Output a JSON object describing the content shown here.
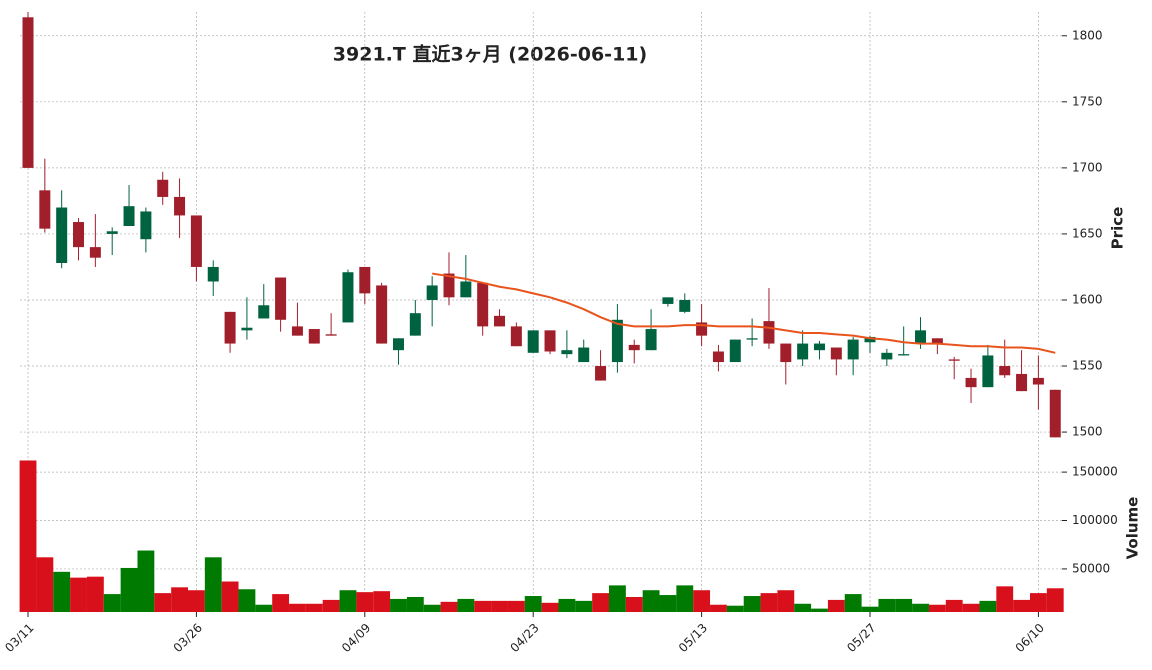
{
  "chart_data": {
    "type": "candlestick",
    "title": "3921.T  直近3ヶ月  (2026-06-11)",
    "y_label": "Price",
    "volume_label": "Volume",
    "categories": [
      "03/11",
      null,
      null,
      null,
      null,
      null,
      null,
      null,
      null,
      null,
      "03/26",
      null,
      null,
      null,
      null,
      null,
      null,
      null,
      null,
      null,
      "04/09",
      null,
      null,
      null,
      null,
      null,
      null,
      null,
      null,
      null,
      "04/23",
      null,
      null,
      null,
      null,
      null,
      null,
      null,
      null,
      null,
      "05/13",
      null,
      null,
      null,
      null,
      null,
      null,
      null,
      null,
      null,
      "05/27",
      null,
      null,
      null,
      null,
      null,
      null,
      null,
      null,
      null,
      "06/10",
      null
    ],
    "open": [
      1814,
      1683,
      1628,
      1659,
      1640,
      1650,
      1656,
      1646,
      1691,
      1678,
      1664,
      1614,
      1591,
      1577,
      1586,
      1617,
      1580,
      1578,
      1574,
      1583,
      1625,
      1611,
      1562,
      1573,
      1600,
      1620,
      1602,
      1613,
      1588,
      1580,
      1560,
      1577,
      1559,
      1553,
      1550,
      1553,
      1566,
      1562,
      1597,
      1591,
      1583,
      1561,
      1553,
      1570,
      1584,
      1567,
      1555,
      1562,
      1564,
      1555,
      1568,
      1555,
      1558,
      1567,
      1571,
      1555,
      1541,
      1534,
      1550,
      1544,
      1541,
      1532
    ],
    "high": [
      1818,
      1707,
      1683,
      1662,
      1665,
      1655,
      1687,
      1670,
      1697,
      1692,
      1664,
      1630,
      1591,
      1602,
      1612,
      1617,
      1598,
      1578,
      1590,
      1623,
      1625,
      1613,
      1571,
      1600,
      1618,
      1636,
      1634,
      1613,
      1593,
      1583,
      1577,
      1577,
      1577,
      1570,
      1562,
      1597,
      1570,
      1593,
      1602,
      1605,
      1597,
      1566,
      1570,
      1586,
      1609,
      1567,
      1577,
      1569,
      1564,
      1572,
      1573,
      1563,
      1580,
      1587,
      1571,
      1557,
      1548,
      1566,
      1570,
      1562,
      1558,
      1532
    ],
    "low": [
      1700,
      1651,
      1624,
      1630,
      1625,
      1634,
      1656,
      1636,
      1672,
      1647,
      1614,
      1603,
      1560,
      1570,
      1586,
      1576,
      1573,
      1567,
      1573,
      1583,
      1597,
      1567,
      1551,
      1573,
      1580,
      1596,
      1602,
      1573,
      1580,
      1565,
      1560,
      1559,
      1556,
      1553,
      1539,
      1545,
      1552,
      1562,
      1595,
      1590,
      1565,
      1546,
      1553,
      1565,
      1563,
      1536,
      1550,
      1555,
      1543,
      1543,
      1560,
      1550,
      1558,
      1563,
      1559,
      1540,
      1522,
      1534,
      1541,
      1531,
      1517,
      1496
    ],
    "close": [
      1700,
      1654,
      1670,
      1640,
      1632,
      1652,
      1671,
      1667,
      1678,
      1664,
      1625,
      1625,
      1567,
      1579,
      1596,
      1585,
      1573,
      1567,
      1573,
      1621,
      1605,
      1567,
      1571,
      1590,
      1611,
      1602,
      1614,
      1580,
      1580,
      1565,
      1577,
      1561,
      1562,
      1564,
      1539,
      1585,
      1562,
      1578,
      1602,
      1600,
      1573,
      1553,
      1570,
      1571,
      1567,
      1553,
      1567,
      1567,
      1555,
      1570,
      1572,
      1560,
      1559,
      1577,
      1567,
      1554,
      1534,
      1558,
      1543,
      1531,
      1536,
      1496
    ],
    "ma": [
      null,
      null,
      null,
      null,
      null,
      null,
      null,
      null,
      null,
      null,
      null,
      null,
      null,
      null,
      null,
      null,
      null,
      null,
      null,
      null,
      null,
      null,
      null,
      null,
      1620,
      1618,
      1616,
      1613,
      1610,
      1608,
      1605,
      1602,
      1598,
      1593,
      1587,
      1582,
      1580,
      1580,
      1580,
      1581,
      1581,
      1580,
      1580,
      1580,
      1579,
      1577,
      1575,
      1575,
      1574,
      1573,
      1571,
      1570,
      1568,
      1567,
      1567,
      1566,
      1565,
      1565,
      1564,
      1564,
      1563,
      1560
    ],
    "volume": [
      162000,
      62000,
      47000,
      41000,
      42000,
      24000,
      51000,
      69000,
      25000,
      31000,
      28000,
      62000,
      37000,
      29000,
      13000,
      24000,
      14000,
      14000,
      18000,
      28000,
      26000,
      27000,
      19000,
      21000,
      13000,
      16000,
      19000,
      17000,
      17000,
      17000,
      22000,
      15000,
      19000,
      17000,
      25000,
      33000,
      21000,
      28000,
      23000,
      33000,
      28000,
      13000,
      12000,
      22000,
      25000,
      28000,
      14000,
      9000,
      18000,
      24000,
      11000,
      19000,
      19000,
      14000,
      13000,
      18000,
      14000,
      17000,
      32000,
      18000,
      25000,
      30000
    ],
    "up_color": "#006340",
    "down_color": "#a01f2a",
    "volume_up_color": "#007a00",
    "volume_down_color": "#d7101b",
    "ma_color": "#e8541c",
    "ylim": [
      1494,
      1818
    ],
    "yticks": [
      1500,
      1550,
      1600,
      1650,
      1700,
      1750,
      1800
    ],
    "volume_ylim": [
      5500,
      178000
    ],
    "volume_yticks": [
      50000,
      100000,
      150000
    ],
    "grid": true
  }
}
